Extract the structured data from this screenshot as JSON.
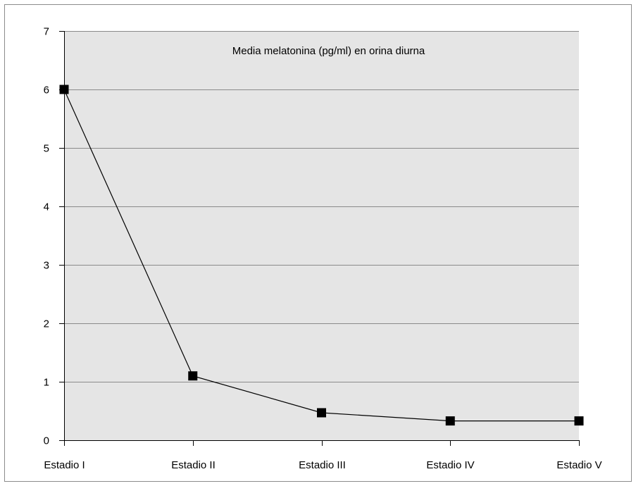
{
  "chart_data": {
    "type": "line",
    "title": "Media melatonina (pg/ml) en orina diurna",
    "xlabel": "",
    "ylabel": "",
    "categories": [
      "Estadio I",
      "Estadio II",
      "Estadio III",
      "Estadio IV",
      "Estadio V"
    ],
    "series": [
      {
        "values": [
          6.0,
          1.1,
          0.47,
          0.33,
          0.33
        ]
      }
    ],
    "ylim": [
      0,
      7
    ],
    "yticks": [
      0,
      1,
      2,
      3,
      4,
      5,
      6,
      7
    ],
    "grid": true,
    "plot_background": "#e5e5e5",
    "line_color": "#000000",
    "marker": "square"
  }
}
